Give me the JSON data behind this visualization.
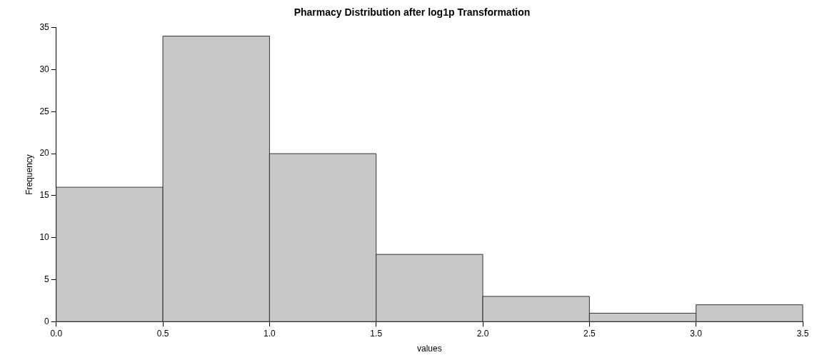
{
  "chart_data": {
    "type": "histogram",
    "title": "Pharmacy Distribution after log1p Transformation",
    "xlabel": "values",
    "ylabel": "Frequency",
    "bins": [
      0,
      0.5,
      1,
      1.5,
      2,
      2.5,
      3,
      3.5
    ],
    "values": [
      16,
      34,
      20,
      8,
      3,
      1,
      2
    ],
    "color": "#c8c8c8",
    "xlim": [
      0,
      3.5
    ],
    "xticks": [
      {
        "value": 0,
        "label": "0.0"
      },
      {
        "value": 0.5,
        "label": "0.5"
      },
      {
        "value": 1,
        "label": "1.0"
      },
      {
        "value": 1.5,
        "label": "1.5"
      },
      {
        "value": 2,
        "label": "2.0"
      },
      {
        "value": 2.5,
        "label": "2.5"
      },
      {
        "value": 3,
        "label": "3.0"
      },
      {
        "value": 3.5,
        "label": "3.5"
      }
    ],
    "ylim": [
      0,
      35
    ],
    "yticks": [
      0,
      5,
      10,
      15,
      20,
      25,
      30,
      35
    ],
    "grid": false,
    "legend": false
  }
}
